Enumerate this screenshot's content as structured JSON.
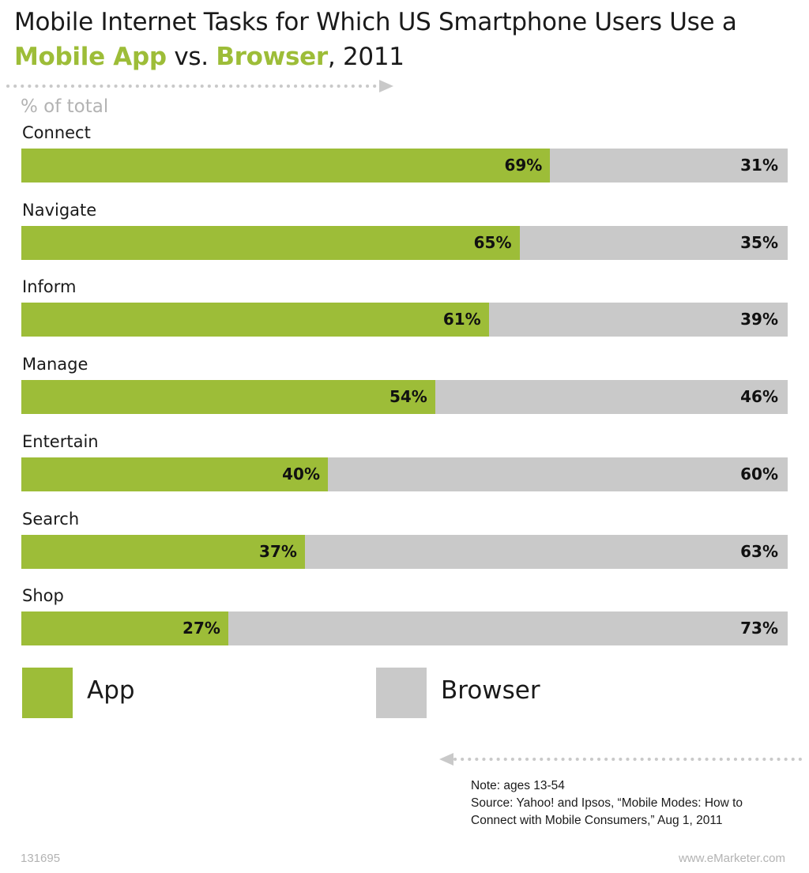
{
  "title": {
    "line1": "Mobile Internet Tasks for Which US Smartphone Users Use a",
    "hl1": "Mobile App",
    "mid": " vs. ",
    "hl2": "Browser",
    "tail": ", 2011"
  },
  "subtitle": "% of total",
  "chart_data": {
    "type": "bar",
    "stacked": true,
    "orientation": "horizontal",
    "categories": [
      "Connect",
      "Navigate",
      "Inform",
      "Manage",
      "Entertain",
      "Search",
      "Shop"
    ],
    "series": [
      {
        "name": "App",
        "values": [
          69,
          65,
          61,
          54,
          40,
          37,
          27
        ]
      },
      {
        "name": "Browser",
        "values": [
          31,
          35,
          39,
          46,
          60,
          63,
          73
        ]
      }
    ],
    "value_labels_app": [
      "69%",
      "65%",
      "61%",
      "54%",
      "40%",
      "37%",
      "27%"
    ],
    "value_labels_browser": [
      "31%",
      "35%",
      "39%",
      "46%",
      "60%",
      "63%",
      "73%"
    ],
    "xlim": [
      0,
      100
    ],
    "grid": false,
    "legend": {
      "placement": "bottom",
      "items": [
        "App",
        "Browser"
      ]
    },
    "colors": {
      "app": "#9dbd38",
      "browser": "#c9c9c9"
    }
  },
  "note": {
    "line1": "Note: ages 13-54",
    "line2": "Source: Yahoo! and Ipsos, “Mobile Modes: How to",
    "line3": "Connect with Mobile Consumers,” Aug 1, 2011"
  },
  "footer": {
    "id": "131695",
    "site": "www.eMarketer.com"
  }
}
